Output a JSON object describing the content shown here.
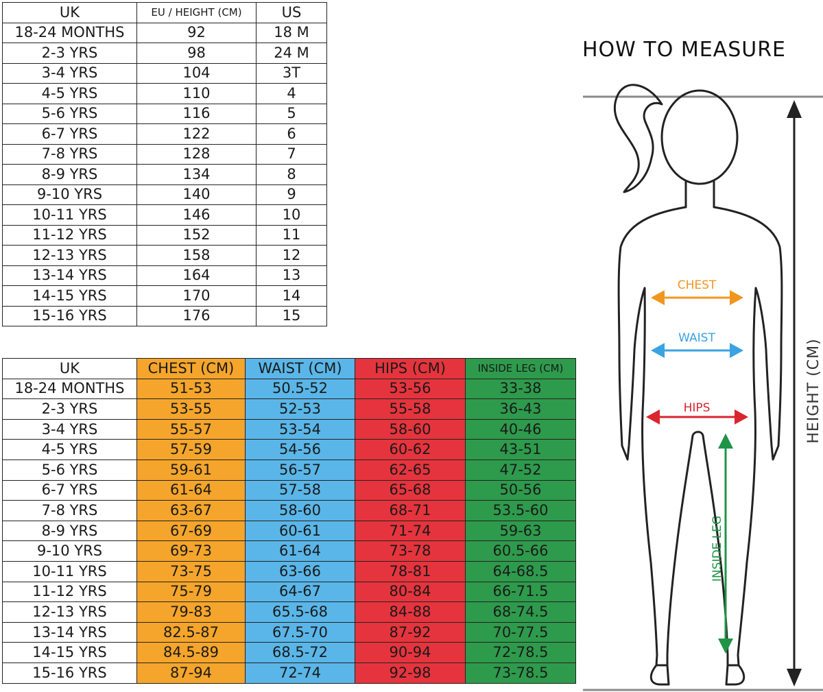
{
  "size_table": {
    "headers": [
      "UK",
      "EU / HEIGHT (CM)",
      "US"
    ],
    "rows": [
      [
        "18-24 MONTHS",
        "92",
        "18 M"
      ],
      [
        "2-3 YRS",
        "98",
        "24 M"
      ],
      [
        "3-4 YRS",
        "104",
        "3T"
      ],
      [
        "4-5 YRS",
        "110",
        "4"
      ],
      [
        "5-6 YRS",
        "116",
        "5"
      ],
      [
        "6-7 YRS",
        "122",
        "6"
      ],
      [
        "7-8 YRS",
        "128",
        "7"
      ],
      [
        "8-9 YRS",
        "134",
        "8"
      ],
      [
        "9-10 YRS",
        "140",
        "9"
      ],
      [
        "10-11 YRS",
        "146",
        "10"
      ],
      [
        "11-12 YRS",
        "152",
        "11"
      ],
      [
        "12-13 YRS",
        "158",
        "12"
      ],
      [
        "13-14 YRS",
        "164",
        "13"
      ],
      [
        "14-15 YRS",
        "170",
        "14"
      ],
      [
        "15-16 YRS",
        "176",
        "15"
      ]
    ]
  },
  "measure_table": {
    "headers": [
      "UK",
      "CHEST (CM)",
      "WAIST (CM)",
      "HIPS (CM)",
      "INSIDE LEG (CM)"
    ],
    "column_colors": [
      "#ffffff",
      "#f5a52b",
      "#5ab6e8",
      "#e5343d",
      "#2e9a4c"
    ],
    "rows": [
      [
        "18-24 MONTHS",
        "51-53",
        "50.5-52",
        "53-56",
        "33-38"
      ],
      [
        "2-3 YRS",
        "53-55",
        "52-53",
        "55-58",
        "36-43"
      ],
      [
        "3-4 YRS",
        "55-57",
        "53-54",
        "58-60",
        "40-46"
      ],
      [
        "4-5 YRS",
        "57-59",
        "54-56",
        "60-62",
        "43-51"
      ],
      [
        "5-6 YRS",
        "59-61",
        "56-57",
        "62-65",
        "47-52"
      ],
      [
        "6-7 YRS",
        "61-64",
        "57-58",
        "65-68",
        "50-56"
      ],
      [
        "7-8 YRS",
        "63-67",
        "58-60",
        "68-71",
        "53.5-60"
      ],
      [
        "8-9 YRS",
        "67-69",
        "60-61",
        "71-74",
        "59-63"
      ],
      [
        "9-10 YRS",
        "69-73",
        "61-64",
        "73-78",
        "60.5-66"
      ],
      [
        "10-11 YRS",
        "73-75",
        "63-66",
        "78-81",
        "64-68.5"
      ],
      [
        "11-12 YRS",
        "75-79",
        "64-67",
        "80-84",
        "66-71.5"
      ],
      [
        "12-13 YRS",
        "79-83",
        "65.5-68",
        "84-88",
        "68-74.5"
      ],
      [
        "13-14 YRS",
        "82.5-87",
        "67.5-70",
        "87-92",
        "70-77.5"
      ],
      [
        "14-15 YRS",
        "84.5-89",
        "68.5-72",
        "90-94",
        "72-78.5"
      ],
      [
        "15-16 YRS",
        "87-94",
        "72-74",
        "92-98",
        "73-78.5"
      ]
    ]
  },
  "figure": {
    "title": "HOW TO MEASURE",
    "labels": {
      "chest": "CHEST",
      "waist": "WAIST",
      "hips": "HIPS",
      "inside_leg": "INSIDE LEG",
      "height": "HEIGHT (CM)"
    },
    "colors": {
      "chest": "#f0961e",
      "waist": "#3aa3e0",
      "hips": "#d9252e",
      "inside_leg": "#1f9446",
      "outline": "#222222",
      "guide_line": "#8a8a8a"
    }
  }
}
